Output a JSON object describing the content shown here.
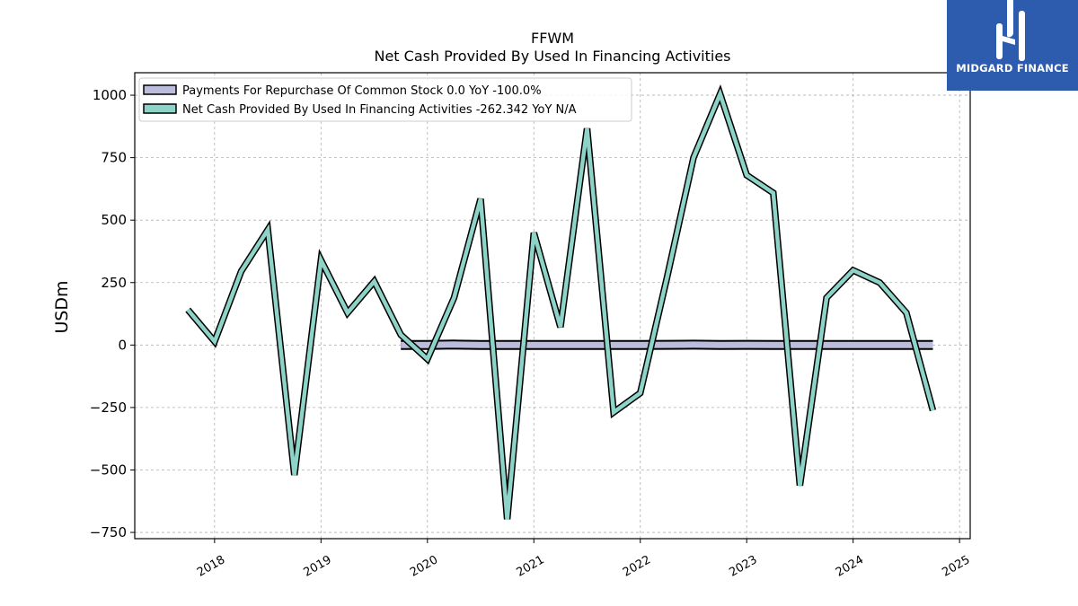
{
  "chart_data": {
    "type": "line",
    "title": "FFWM",
    "subtitle": "Net Cash Provided By Used In Financing Activities",
    "ylabel": "USDm",
    "xlabel": "",
    "ylim": [
      -775,
      1090
    ],
    "xlim": [
      2017.25,
      2025.1
    ],
    "yticks": [
      -750,
      -500,
      -250,
      0,
      250,
      500,
      750,
      1000
    ],
    "ytick_labels": [
      "−750",
      "−500",
      "−250",
      "0",
      "250",
      "500",
      "750",
      "1000"
    ],
    "xticks": [
      2018,
      2019,
      2020,
      2021,
      2022,
      2023,
      2024,
      2025
    ],
    "xtick_labels": [
      "2018",
      "2019",
      "2020",
      "2021",
      "2022",
      "2023",
      "2024",
      "2025"
    ],
    "grid": true,
    "legend_position": "top-left",
    "series": [
      {
        "name": "Payments For Repurchase Of Common Stock  0.0 YoY -100.0%",
        "color": "#bcbddc",
        "x": [
          2019.75,
          2020.0,
          2020.25,
          2020.5,
          2020.75,
          2021.0,
          2021.25,
          2021.5,
          2021.75,
          2022.0,
          2022.25,
          2022.5,
          2022.75,
          2023.0,
          2023.25,
          2023.5,
          2023.75,
          2024.0,
          2024.25,
          2024.5,
          2024.75
        ],
        "values": [
          0,
          0.5,
          2,
          0.5,
          0,
          0,
          0.5,
          0,
          0,
          0.5,
          1,
          1.5,
          0.5,
          1,
          0.5,
          0,
          0,
          0,
          0,
          0,
          0
        ]
      },
      {
        "name": "Net Cash Provided By Used In Financing Activities  -262.342 YoY N/A",
        "color": "#8dd3c7",
        "x": [
          2017.75,
          2018.0,
          2018.25,
          2018.5,
          2018.75,
          2019.0,
          2019.25,
          2019.5,
          2019.75,
          2020.0,
          2020.25,
          2020.5,
          2020.75,
          2021.0,
          2021.25,
          2021.5,
          2021.75,
          2022.0,
          2022.25,
          2022.5,
          2022.75,
          2023.0,
          2023.25,
          2023.5,
          2023.75,
          2024.0,
          2024.25,
          2024.5,
          2024.75
        ],
        "values": [
          141,
          14,
          295,
          461,
          -520,
          340,
          129,
          255,
          41,
          -56,
          189,
          585,
          -697,
          449,
          72,
          867,
          -269,
          -192,
          269,
          750,
          1005,
          680,
          609,
          -562,
          189,
          299,
          250,
          129,
          -262
        ]
      }
    ]
  },
  "logo": {
    "text": "MIDGARD FINANCE"
  }
}
